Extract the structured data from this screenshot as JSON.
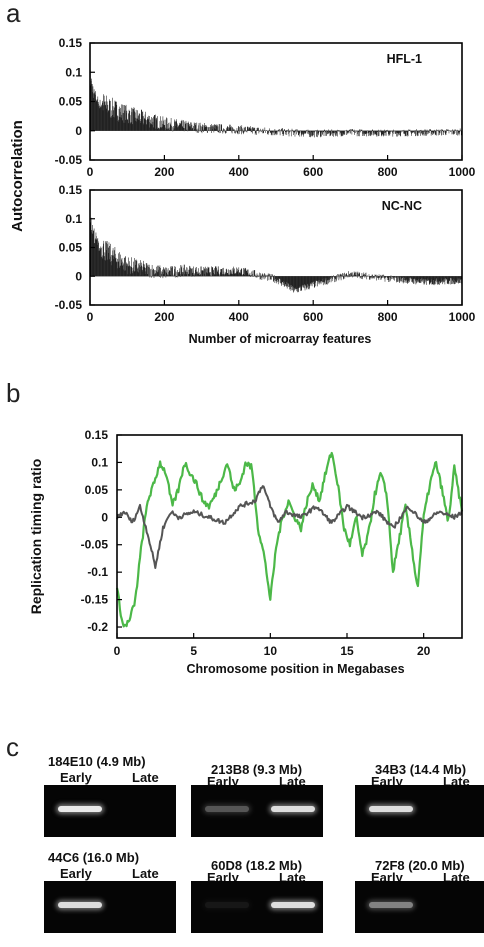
{
  "panels": {
    "a": "a",
    "b": "b",
    "c": "c"
  },
  "chart_data": [
    {
      "type": "bar",
      "panel": "a-top",
      "annotation": "HFL-1",
      "ylabel": "Autocorrelation",
      "xlabel": "",
      "xlim": [
        0,
        1000
      ],
      "ylim": [
        -0.05,
        0.15
      ],
      "xticks": [
        "0",
        "200",
        "400",
        "600",
        "800",
        "1000"
      ],
      "yticks": [
        "-0.05",
        "0",
        "0.05",
        "0.1",
        "0.15"
      ],
      "x": [
        0,
        10,
        25,
        50,
        100,
        150,
        200,
        250,
        300,
        400,
        500,
        600,
        700,
        800,
        900,
        1000
      ],
      "values": [
        0.1,
        0.07,
        0.05,
        0.04,
        0.028,
        0.02,
        0.012,
        0.008,
        0.005,
        0.002,
        -0.002,
        -0.005,
        -0.003,
        -0.004,
        -0.003,
        -0.002
      ]
    },
    {
      "type": "bar",
      "panel": "a-bottom",
      "annotation": "NC-NC",
      "ylabel": "Autocorrelation",
      "xlabel": "Number of microarray features",
      "xlim": [
        0,
        1000
      ],
      "ylim": [
        -0.05,
        0.15
      ],
      "xticks": [
        "0",
        "200",
        "400",
        "600",
        "800",
        "1000"
      ],
      "yticks": [
        "-0.05",
        "0",
        "0.05",
        "0.1",
        "0.15"
      ],
      "x": [
        0,
        10,
        25,
        50,
        100,
        150,
        200,
        250,
        300,
        400,
        500,
        550,
        600,
        700,
        800,
        900,
        1000
      ],
      "values": [
        0.1,
        0.08,
        0.055,
        0.04,
        0.02,
        0.012,
        0.006,
        0.01,
        0.008,
        0.01,
        -0.005,
        -0.025,
        -0.015,
        0.004,
        -0.004,
        -0.01,
        -0.008
      ]
    },
    {
      "type": "line",
      "panel": "b",
      "ylabel": "Replication timing ratio",
      "xlabel": "Chromosome position in Megabases",
      "xlim": [
        0,
        22.5
      ],
      "ylim": [
        -0.22,
        0.15
      ],
      "xticks": [
        "0",
        "5",
        "10",
        "15",
        "20"
      ],
      "yticks": [
        "-0.2",
        "-0.15",
        "-0.1",
        "-0.05",
        "0",
        "0.05",
        "0.1",
        "0.15"
      ],
      "colors": {
        "green": "#4cb848",
        "gray": "#555555"
      },
      "series": [
        {
          "color": "green",
          "x": [
            0,
            0.4,
            0.8,
            1.2,
            1.6,
            2.0,
            2.4,
            2.8,
            3.2,
            3.6,
            4.0,
            4.4,
            4.8,
            5.2,
            5.6,
            6.0,
            6.4,
            6.8,
            7.2,
            7.6,
            8.0,
            8.4,
            8.8,
            9.2,
            9.6,
            10.0,
            10.4,
            10.8,
            11.2,
            11.6,
            12.0,
            12.4,
            12.8,
            13.2,
            13.6,
            14.0,
            14.4,
            14.8,
            15.2,
            15.6,
            16.0,
            16.4,
            16.8,
            17.2,
            17.6,
            18.0,
            18.4,
            18.8,
            19.2,
            19.6,
            20.0,
            20.4,
            20.8,
            21.2,
            21.6,
            22.0,
            22.5
          ],
          "y": [
            -0.13,
            -0.2,
            -0.19,
            -0.15,
            -0.05,
            0.03,
            0.06,
            0.1,
            0.08,
            0.02,
            0.05,
            0.1,
            0.08,
            0.06,
            0.03,
            0.02,
            0.04,
            0.07,
            0.1,
            0.05,
            0.06,
            0.1,
            0.09,
            -0.02,
            -0.07,
            -0.15,
            -0.05,
            0.0,
            0.03,
            0.0,
            -0.02,
            0.03,
            0.06,
            0.03,
            0.08,
            0.12,
            0.06,
            -0.02,
            -0.05,
            0.0,
            -0.07,
            -0.03,
            0.04,
            0.08,
            0.04,
            -0.1,
            -0.04,
            0.02,
            -0.05,
            -0.13,
            0.0,
            0.06,
            0.1,
            0.05,
            -0.01,
            0.09,
            0.01
          ]
        },
        {
          "color": "gray",
          "x": [
            0,
            0.5,
            1.0,
            1.5,
            2.0,
            2.5,
            3.0,
            3.5,
            4.0,
            5.0,
            6.0,
            7.0,
            8.0,
            9.0,
            9.5,
            10.0,
            10.5,
            11.0,
            12.0,
            13.0,
            14.0,
            15.0,
            16.0,
            17.0,
            18.0,
            19.0,
            20.0,
            21.0,
            22.0,
            22.5
          ],
          "y": [
            0.0,
            0.01,
            -0.01,
            0.02,
            -0.03,
            -0.09,
            -0.02,
            0.01,
            0.0,
            0.01,
            0.0,
            -0.01,
            0.02,
            0.03,
            0.06,
            0.02,
            -0.01,
            0.01,
            0.0,
            0.02,
            -0.01,
            0.02,
            0.0,
            0.01,
            -0.02,
            0.02,
            -0.01,
            0.01,
            0.0,
            0.01
          ]
        }
      ]
    }
  ],
  "gels": [
    {
      "title": "184E10 (4.9 Mb)",
      "early": "Early",
      "late": "Late",
      "early_intensity": 1.0,
      "late_intensity": 0.0
    },
    {
      "title": "213B8 (9.3 Mb)",
      "early": "Early",
      "late": "Late",
      "early_intensity": 0.35,
      "late_intensity": 0.95
    },
    {
      "title": "34B3 (14.4 Mb)",
      "early": "Early",
      "late": "Late",
      "early_intensity": 0.95,
      "late_intensity": 0.0
    },
    {
      "title": "44C6 (16.0 Mb)",
      "early": "Early",
      "late": "Late",
      "early_intensity": 0.95,
      "late_intensity": 0.0
    },
    {
      "title": "60D8 (18.2 Mb)",
      "early": "Early",
      "late": "Late",
      "early_intensity": 0.08,
      "late_intensity": 0.95
    },
    {
      "title": "72F8 (20.0 Mb)",
      "early": "Early",
      "late": "Late",
      "early_intensity": 0.55,
      "late_intensity": 0.0
    }
  ]
}
